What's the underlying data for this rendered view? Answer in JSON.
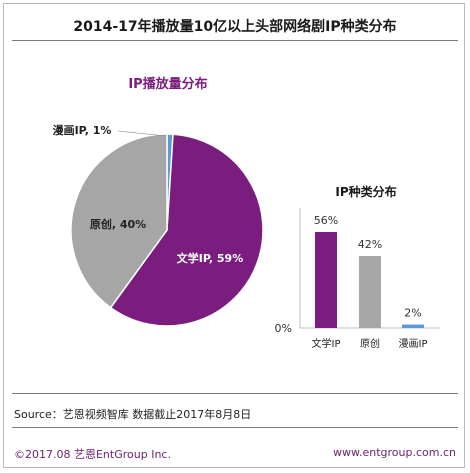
{
  "title": "2014-17年播放量10亿以上头部网络剧IP种类分布",
  "source": "Source：艺恩视频智库   数据截止2017年8月8日",
  "footer": {
    "copyright": "©2017.08  艺恩EntGroup Inc.",
    "website": "www.entgroup.com.cn"
  },
  "colors": {
    "literary": "#7a1d7e",
    "original": "#a6a6a6",
    "comic": "#5b9bd5"
  },
  "chart_data": [
    {
      "type": "pie",
      "title": "IP播放量分布",
      "slices": [
        {
          "label": "文学IP",
          "value": 59,
          "display": "文学IP, 59%"
        },
        {
          "label": "原创",
          "value": 40,
          "display": "原创, 40%"
        },
        {
          "label": "漫画IP",
          "value": 1,
          "display": "漫画IP, 1%"
        }
      ]
    },
    {
      "type": "bar",
      "title": "IP种类分布",
      "categories": [
        "文学IP",
        "原创",
        "漫画IP"
      ],
      "values": [
        56,
        42,
        2
      ],
      "value_labels": [
        "56%",
        "42%",
        "2%"
      ],
      "y_tick_label": "0%",
      "ylim": [
        0,
        70
      ]
    }
  ]
}
